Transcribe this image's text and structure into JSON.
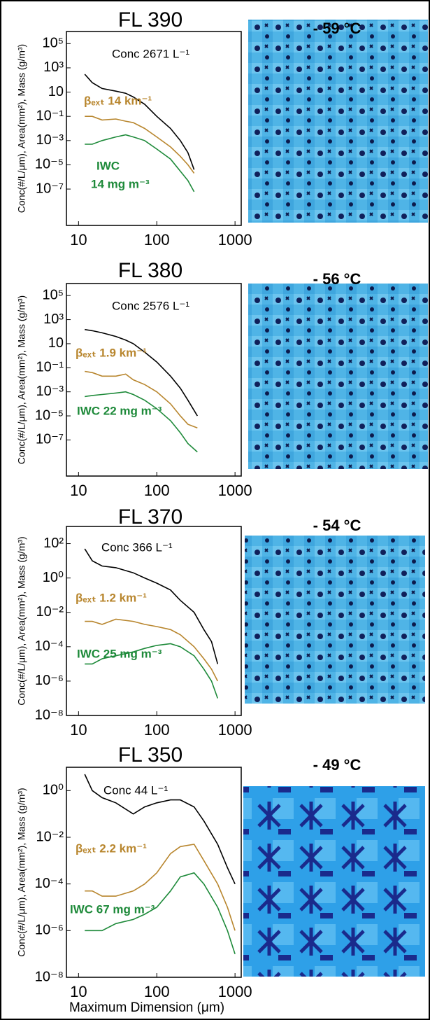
{
  "chart_data": [
    {
      "type": "line",
      "title": "FL 390",
      "image_title": "- 59 °C",
      "ylabel": "Conc(#/L/μm), Area(mm²), Mass (g/m³)",
      "xscale": "log",
      "yscale": "log",
      "xlim": [
        7,
        1200
      ],
      "ylim": [
        1e-10,
        1000000
      ],
      "xticks": [
        10,
        100,
        1000
      ],
      "yticks": [
        {
          "value": 100000,
          "label": "10⁵"
        },
        {
          "value": 1000,
          "label": "10³"
        },
        10,
        {
          "value": 0.1,
          "label": "10⁻¹"
        },
        {
          "value": 0.001,
          "label": "10⁻³"
        },
        {
          "value": 1e-05,
          "label": "10⁻⁵"
        },
        {
          "value": 1e-07,
          "label": "10⁻⁷"
        }
      ],
      "x": [
        12,
        15,
        20,
        30,
        40,
        50,
        70,
        100,
        150,
        200,
        250,
        300
      ],
      "series": [
        {
          "color": "#000000",
          "annotation": "Conc 2671 L⁻¹",
          "values": [
            300,
            60,
            20,
            12,
            8,
            4,
            1,
            0.1,
            0.01,
            0.001,
            0.0001,
            4e-06
          ]
        },
        {
          "color": "#b8862e",
          "annotation": "βₑₓₜ 14 km⁻¹",
          "values": [
            0.1,
            0.1,
            0.05,
            0.06,
            0.04,
            0.03,
            0.01,
            0.002,
            0.0003,
            5e-05,
            1e-05,
            2e-06
          ]
        },
        {
          "color": "#1e8a3a",
          "annotation": [
            "IWC",
            "14 mg m⁻³"
          ],
          "values": [
            0.0005,
            0.0005,
            0.001,
            0.002,
            0.003,
            0.002,
            0.001,
            0.0002,
            3e-05,
            3e-06,
            5e-07,
            6e-08
          ]
        }
      ]
    },
    {
      "type": "line",
      "title": "FL 380",
      "image_title": "- 56 °C",
      "ylabel": "Conc(#/L/μm), Area(mm²), Mass (g/m³)",
      "xscale": "log",
      "yscale": "log",
      "xlim": [
        7,
        1200
      ],
      "ylim": [
        1e-10,
        1000000
      ],
      "xticks": [
        10,
        100,
        1000
      ],
      "yticks": [
        {
          "value": 100000,
          "label": "10⁵"
        },
        {
          "value": 1000,
          "label": "10³"
        },
        10,
        {
          "value": 0.1,
          "label": "10⁻¹"
        },
        {
          "value": 0.001,
          "label": "10⁻³"
        },
        {
          "value": 1e-05,
          "label": "10⁻⁵"
        },
        {
          "value": 1e-07,
          "label": "10⁻⁷"
        }
      ],
      "x": [
        12,
        15,
        20,
        30,
        40,
        50,
        70,
        100,
        150,
        200,
        250,
        330
      ],
      "series": [
        {
          "color": "#000000",
          "annotation": "Conc 2576 L⁻¹",
          "values": [
            150,
            120,
            80,
            40,
            20,
            10,
            2,
            0.3,
            0.02,
            0.002,
            0.0002,
            1e-05
          ]
        },
        {
          "color": "#b8862e",
          "annotation": "βₑₓₜ 1.9 km⁻¹",
          "values": [
            0.05,
            0.04,
            0.02,
            0.02,
            0.03,
            0.01,
            0.004,
            0.001,
            0.0001,
            1e-05,
            2e-06,
            1e-06
          ]
        },
        {
          "color": "#1e8a3a",
          "annotation": "IWC 22 mg m⁻³",
          "values": [
            0.0004,
            0.0005,
            0.0006,
            0.0008,
            0.001,
            0.0006,
            0.0002,
            4e-05,
            4e-06,
            4e-07,
            5e-08,
            1e-08
          ]
        }
      ]
    },
    {
      "type": "line",
      "title": "FL 370",
      "image_title": "- 54 °C",
      "ylabel": "Conc(#/L/μm), Area(mm²), Mass (g/m³)",
      "xscale": "log",
      "yscale": "log",
      "xlim": [
        7,
        1200
      ],
      "ylim": [
        1e-08,
        1000
      ],
      "xticks": [
        10,
        100,
        1000
      ],
      "yticks": [
        {
          "value": 100,
          "label": "10²"
        },
        {
          "value": 1,
          "label": "10⁰"
        },
        {
          "value": 0.01,
          "label": "10⁻²"
        },
        {
          "value": 0.0001,
          "label": "10⁻⁴"
        },
        {
          "value": 1e-06,
          "label": "10⁻⁶"
        },
        {
          "value": 1e-08,
          "label": "10⁻⁸"
        }
      ],
      "x": [
        12,
        15,
        20,
        30,
        50,
        70,
        100,
        150,
        200,
        300,
        400,
        500,
        600
      ],
      "series": [
        {
          "color": "#000000",
          "annotation": "Conc 366 L⁻¹",
          "values": [
            50,
            10,
            5,
            4,
            2,
            1,
            0.5,
            0.2,
            0.05,
            0.01,
            0.001,
            0.0002,
            1e-05
          ]
        },
        {
          "color": "#b8862e",
          "annotation": "βₑₓₜ 1.2 km⁻¹",
          "values": [
            0.003,
            0.003,
            0.002,
            0.004,
            0.003,
            0.002,
            0.0015,
            0.001,
            0.0005,
            0.0001,
            2e-05,
            5e-06,
            1e-06
          ]
        },
        {
          "color": "#1e8a3a",
          "annotation": "IWC 25 mg m⁻³",
          "values": [
            1e-05,
            1e-05,
            2e-05,
            3e-05,
            5e-05,
            8e-05,
            0.00012,
            0.00015,
            0.0001,
            3e-05,
            5e-06,
            1e-06,
            1e-07
          ]
        }
      ]
    },
    {
      "type": "line",
      "title": "FL 350",
      "image_title": "- 49 °C",
      "ylabel": "Conc(#/L/μm), Area(mm²), Mass (g/m³)",
      "xlabel": "Maximum Dimension (μm)",
      "xscale": "log",
      "yscale": "log",
      "xlim": [
        7,
        1200
      ],
      "ylim": [
        1e-08,
        10
      ],
      "xticks": [
        10,
        100,
        1000
      ],
      "yticks": [
        {
          "value": 1,
          "label": "10⁰"
        },
        {
          "value": 0.01,
          "label": "10⁻²"
        },
        {
          "value": 0.0001,
          "label": "10⁻⁴"
        },
        {
          "value": 1e-06,
          "label": "10⁻⁶"
        },
        {
          "value": 1e-08,
          "label": "10⁻⁸"
        }
      ],
      "x": [
        12,
        15,
        20,
        30,
        50,
        70,
        100,
        150,
        200,
        300,
        400,
        600,
        800,
        1000
      ],
      "series": [
        {
          "color": "#000000",
          "annotation": "Conc 44 L⁻¹",
          "values": [
            5,
            1,
            0.5,
            0.3,
            0.1,
            0.2,
            0.3,
            0.4,
            0.4,
            0.2,
            0.05,
            0.005,
            0.0005,
            0.0001
          ]
        },
        {
          "color": "#b8862e",
          "annotation": "βₑₓₜ 2.2 km⁻¹",
          "values": [
            5e-05,
            5e-05,
            3e-05,
            3e-05,
            5e-05,
            0.0001,
            0.0003,
            0.002,
            0.004,
            0.005,
            0.001,
            0.0001,
            1e-05,
            1e-06
          ]
        },
        {
          "color": "#1e8a3a",
          "annotation": "IWC 67 mg m⁻³",
          "values": [
            1e-06,
            1e-06,
            1e-06,
            2e-06,
            3e-06,
            5e-06,
            1e-05,
            5e-05,
            0.0002,
            0.0003,
            0.0001,
            1e-05,
            1e-06,
            1e-07
          ]
        }
      ]
    }
  ]
}
